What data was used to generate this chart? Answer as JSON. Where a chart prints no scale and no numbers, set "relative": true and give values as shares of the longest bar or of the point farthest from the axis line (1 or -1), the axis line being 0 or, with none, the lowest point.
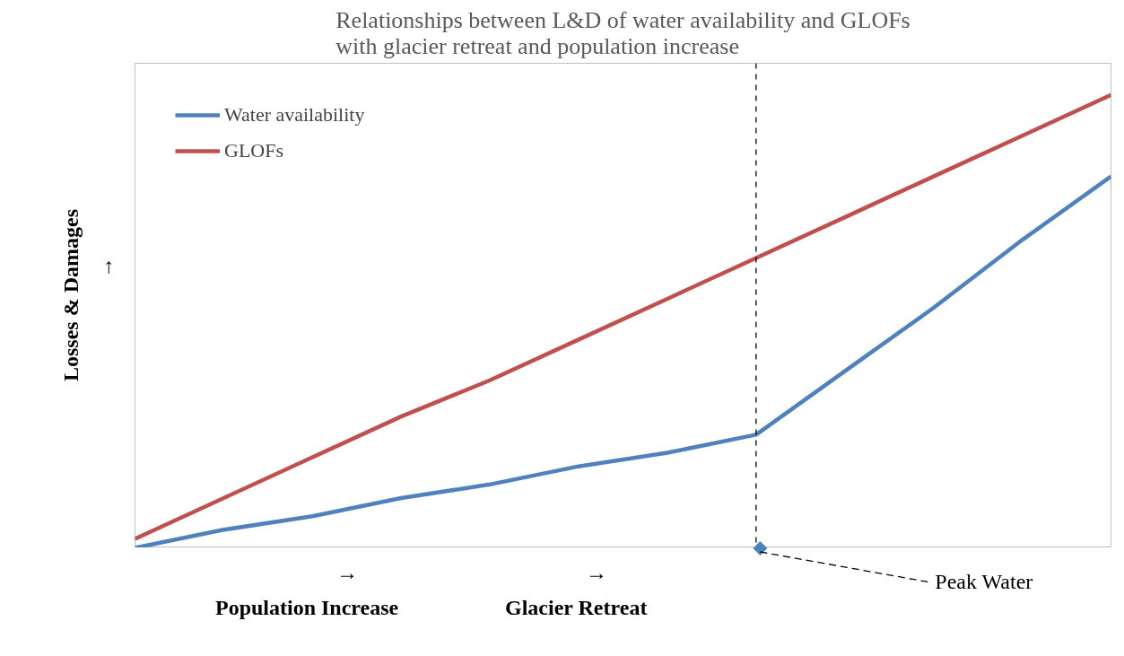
{
  "chart_data": {
    "type": "line",
    "title": "Relationships between L&D of water availability and GLOFs with glacier retreat and population increase",
    "xlabel": "Population Increase",
    "ylabel": "Losses & Damages",
    "relative": true,
    "categories": [
      null,
      null,
      null,
      null,
      null,
      null,
      null,
      null,
      null,
      null,
      null,
      null
    ],
    "legend": "top left",
    "series": [
      {
        "name": "Water availability",
        "color": "#4f81bd",
        "values": [
          0,
          0.04,
          0.07,
          0.11,
          0.14,
          0.18,
          0.21,
          0.25,
          0.39,
          0.53,
          0.68,
          0.82
        ]
      },
      {
        "name": "GLOFs",
        "color": "#c0504d",
        "values": [
          0.02,
          0.11,
          0.2,
          0.29,
          0.37,
          0.46,
          0.55,
          0.64,
          0.73,
          0.82,
          0.91,
          1
        ]
      }
    ],
    "annotations": [
      "Peak Water",
      "Glacier Retreat",
      "→",
      "→",
      "→"
    ]
  }
}
